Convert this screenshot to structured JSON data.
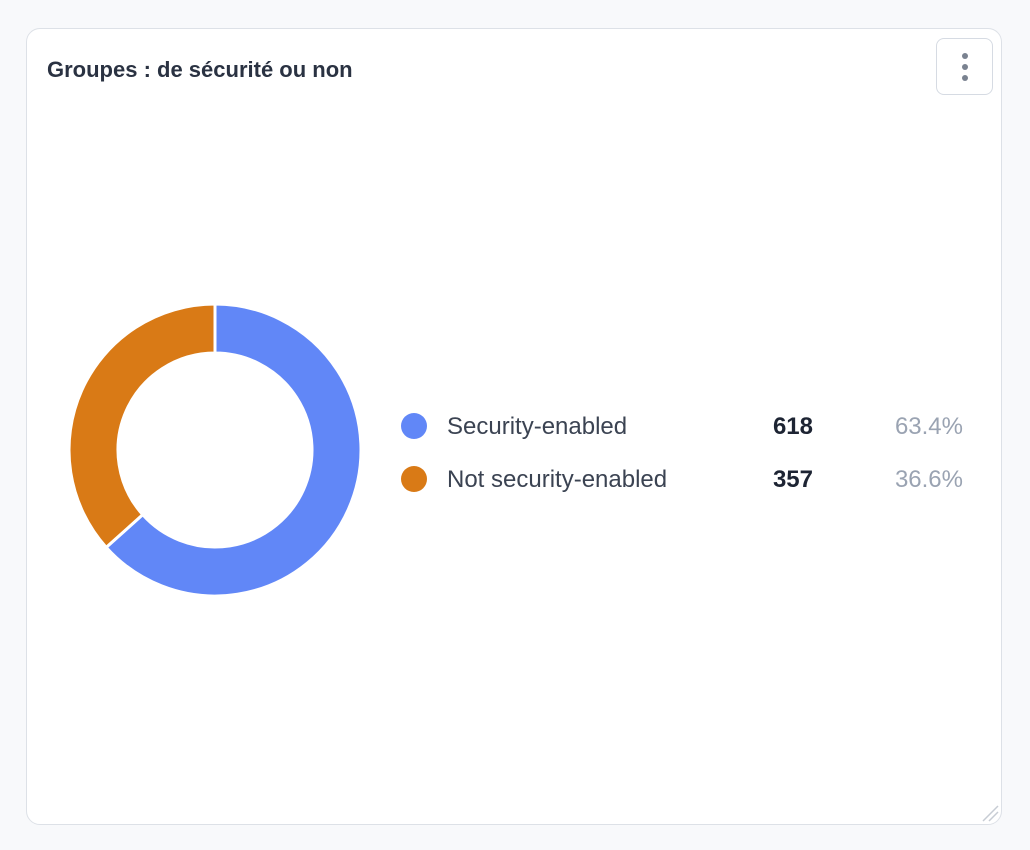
{
  "card": {
    "title": "Groupes : de sécurité ou non",
    "menu_icon": "more-vertical-icon"
  },
  "chart_data": {
    "type": "pie",
    "variant": "donut",
    "title": "Groupes : de sécurité ou non",
    "legend_position": "right",
    "categories": [
      "Security-enabled",
      "Not security-enabled"
    ],
    "values": [
      618,
      357
    ],
    "percentages": [
      "63.4%",
      "36.6%"
    ],
    "colors": [
      "#6187f7",
      "#d97a16"
    ],
    "legend": [
      {
        "label": "Security-enabled",
        "value": "618",
        "percent": "63.4%",
        "color": "#6187f7"
      },
      {
        "label": "Not security-enabled",
        "value": "357",
        "percent": "36.6%",
        "color": "#d97a16"
      }
    ]
  }
}
